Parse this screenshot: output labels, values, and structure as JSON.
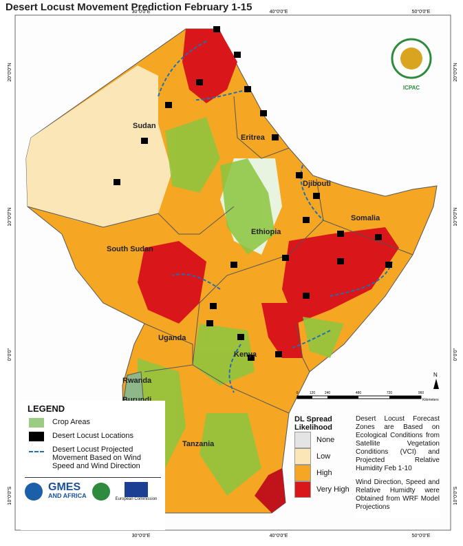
{
  "title": "Desert Locust Movement Prediction February 1-15",
  "graticule": {
    "top": [
      "30°0'0\"E",
      "40°0'0\"E",
      "50°0'0\"E"
    ],
    "bottom": [
      "30°0'0\"E",
      "40°0'0\"E",
      "50°0'0\"E"
    ],
    "left": [
      "20°0'0\"N",
      "10°0'0\"N",
      "0°0'0\"",
      "10°0'0\"S"
    ],
    "right": [
      "20°0'0\"N",
      "10°0'0\"N",
      "0°0'0\"",
      "10°0'0\"S"
    ]
  },
  "countries": [
    "Sudan",
    "Eritrea",
    "Djibouti",
    "Ethiopia",
    "Somalia",
    "South Sudan",
    "Uganda",
    "Kenya",
    "Rwanda",
    "Burundi",
    "Tanzania"
  ],
  "legend": {
    "title": "LEGEND",
    "items": [
      "Crop Areas",
      "Desert Locust Locations",
      "Desert Locust Projected Movement Based on Wind Speed and Wind Direction"
    ]
  },
  "spread_legend": {
    "title": "DL Spread Likelihood",
    "classes": [
      "None",
      "Low",
      "High",
      "Very High"
    ]
  },
  "notes": [
    "Desert Locust Forecast Zones are Based on Ecological Conditions from Satellite Vegetation Conditions (VCI) and Projected Relative Humidity Feb 1-10",
    "Wind Direction, Speed and Relative Humidty were Obtained from WRF Model Projections"
  ],
  "scale_bar": {
    "ticks": [
      "0",
      "120",
      "240",
      "480",
      "720",
      "960"
    ],
    "unit": "Kilometers"
  },
  "north": "N",
  "logos": [
    "ICPAC",
    "GMES",
    "AND AFRICA",
    "European Commission"
  ]
}
